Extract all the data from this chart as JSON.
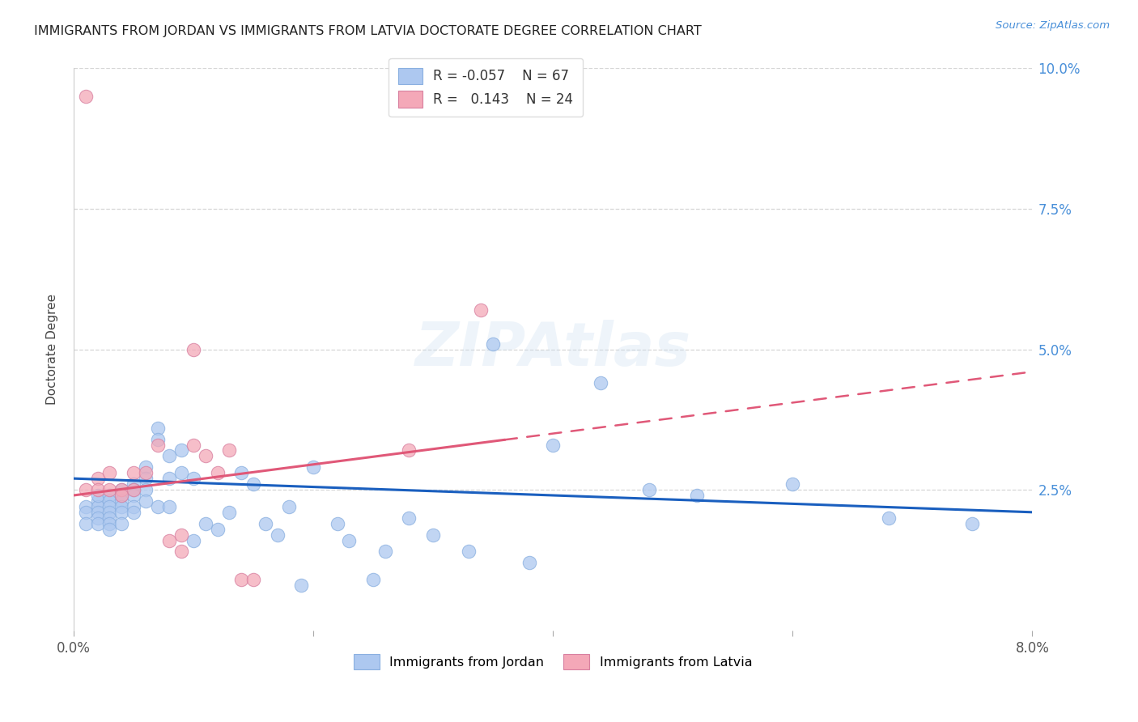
{
  "title": "IMMIGRANTS FROM JORDAN VS IMMIGRANTS FROM LATVIA DOCTORATE DEGREE CORRELATION CHART",
  "source": "Source: ZipAtlas.com",
  "xlabel_jordan": "Immigrants from Jordan",
  "xlabel_latvia": "Immigrants from Latvia",
  "ylabel": "Doctorate Degree",
  "xlim": [
    0.0,
    0.08
  ],
  "ylim": [
    0.0,
    0.1
  ],
  "xtick_positions": [
    0.0,
    0.02,
    0.04,
    0.06,
    0.08
  ],
  "xtick_labels": [
    "0.0%",
    "",
    "",
    "",
    "8.0%"
  ],
  "ytick_positions": [
    0.025,
    0.05,
    0.075,
    0.1
  ],
  "ytick_labels": [
    "2.5%",
    "5.0%",
    "7.5%",
    "10.0%"
  ],
  "R_jordan": -0.057,
  "N_jordan": 67,
  "R_latvia": 0.143,
  "N_latvia": 24,
  "color_jordan": "#adc8f0",
  "color_latvia": "#f4a8b8",
  "line_color_jordan": "#1a5fbf",
  "line_color_latvia": "#e05878",
  "watermark": "ZIPAtlas",
  "jordan_x": [
    0.001,
    0.001,
    0.001,
    0.002,
    0.002,
    0.002,
    0.002,
    0.002,
    0.002,
    0.003,
    0.003,
    0.003,
    0.003,
    0.003,
    0.003,
    0.003,
    0.004,
    0.004,
    0.004,
    0.004,
    0.004,
    0.004,
    0.005,
    0.005,
    0.005,
    0.005,
    0.005,
    0.006,
    0.006,
    0.006,
    0.006,
    0.007,
    0.007,
    0.007,
    0.008,
    0.008,
    0.008,
    0.009,
    0.009,
    0.01,
    0.01,
    0.011,
    0.012,
    0.013,
    0.014,
    0.015,
    0.016,
    0.017,
    0.018,
    0.019,
    0.02,
    0.022,
    0.023,
    0.025,
    0.026,
    0.028,
    0.03,
    0.033,
    0.035,
    0.038,
    0.04,
    0.044,
    0.048,
    0.052,
    0.06,
    0.068,
    0.075
  ],
  "jordan_y": [
    0.022,
    0.021,
    0.019,
    0.023,
    0.022,
    0.021,
    0.02,
    0.024,
    0.019,
    0.024,
    0.023,
    0.022,
    0.021,
    0.02,
    0.019,
    0.018,
    0.025,
    0.024,
    0.023,
    0.022,
    0.021,
    0.019,
    0.026,
    0.025,
    0.024,
    0.022,
    0.021,
    0.029,
    0.027,
    0.025,
    0.023,
    0.036,
    0.034,
    0.022,
    0.031,
    0.027,
    0.022,
    0.032,
    0.028,
    0.027,
    0.016,
    0.019,
    0.018,
    0.021,
    0.028,
    0.026,
    0.019,
    0.017,
    0.022,
    0.008,
    0.029,
    0.019,
    0.016,
    0.009,
    0.014,
    0.02,
    0.017,
    0.014,
    0.051,
    0.012,
    0.033,
    0.044,
    0.025,
    0.024,
    0.026,
    0.02,
    0.019
  ],
  "latvia_x": [
    0.001,
    0.001,
    0.002,
    0.002,
    0.003,
    0.003,
    0.004,
    0.004,
    0.005,
    0.005,
    0.006,
    0.007,
    0.008,
    0.009,
    0.009,
    0.01,
    0.011,
    0.012,
    0.013,
    0.014,
    0.015,
    0.028,
    0.034,
    0.01
  ],
  "latvia_y": [
    0.095,
    0.025,
    0.027,
    0.025,
    0.028,
    0.025,
    0.025,
    0.024,
    0.028,
    0.025,
    0.028,
    0.033,
    0.016,
    0.017,
    0.014,
    0.033,
    0.031,
    0.028,
    0.032,
    0.009,
    0.009,
    0.032,
    0.057,
    0.05
  ],
  "jordan_line_x": [
    0.0,
    0.08
  ],
  "jordan_line_y": [
    0.027,
    0.021
  ],
  "latvia_line_x": [
    0.0,
    0.08
  ],
  "latvia_line_y": [
    0.024,
    0.046
  ]
}
